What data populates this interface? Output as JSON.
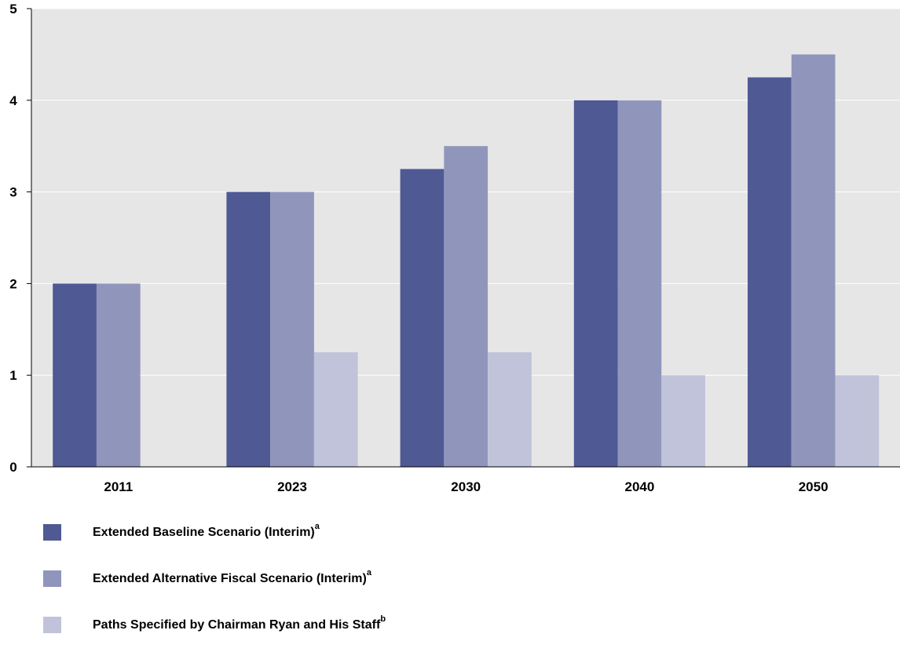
{
  "chart_data": {
    "type": "bar",
    "categories": [
      "2011",
      "2023",
      "2030",
      "2040",
      "2050"
    ],
    "series": [
      {
        "name": "Extended Baseline Scenario (Interim)",
        "name_sup": "a",
        "color": "#4f5994",
        "values": [
          2,
          3,
          3.25,
          4,
          4.25
        ]
      },
      {
        "name": "Extended Alternative Fiscal Scenario (Interim)",
        "name_sup": "a",
        "color": "#9096bb",
        "values": [
          2,
          3,
          3.5,
          4,
          4.5
        ]
      },
      {
        "name": "Paths Specified by Chairman Ryan and His Staff",
        "name_sup": "b",
        "color": "#c1c3db",
        "values": [
          null,
          1.25,
          1.25,
          1,
          1
        ]
      }
    ],
    "ylim": [
      0,
      5
    ],
    "yticks": [
      "0",
      "1",
      "2",
      "3",
      "4",
      "5"
    ],
    "grid": true,
    "plot_background": "#e6e6e6",
    "legend_position": "bottom-left"
  }
}
